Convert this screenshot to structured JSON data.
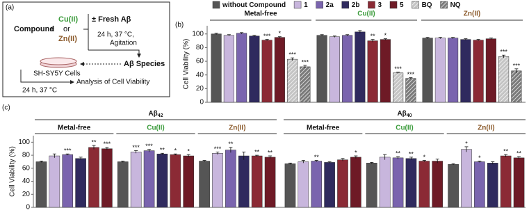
{
  "diagram": {
    "label": "(a)",
    "compound": "Compound",
    "pm": "±",
    "cu": "Cu(II)",
    "or": "or",
    "zn": "Zn(II)",
    "fresh": "± Fresh Aβ",
    "cond1": "24 h, 37 °C,",
    "cond2": "Agitation",
    "species": "Aβ Species",
    "cells": "SH-SY5Y Cells",
    "cond3": "24 h, 37 °C",
    "analysis": "Analysis of Cell Viability"
  },
  "chart_data": [
    {
      "type": "bar",
      "panel_label": "(b)",
      "ylabel": "Cell Viability (%)",
      "ylim": [
        0,
        112
      ],
      "yticks": [
        0,
        20,
        40,
        60,
        80,
        100
      ],
      "series": [
        {
          "name": "without Compound",
          "color": "#555555",
          "hatch": false
        },
        {
          "name": "1",
          "color": "#c8b6dd",
          "hatch": false
        },
        {
          "name": "2a",
          "color": "#7a64ae",
          "hatch": false
        },
        {
          "name": "2b",
          "color": "#2f2a5e",
          "hatch": false
        },
        {
          "name": "3",
          "color": "#8b2a35",
          "hatch": false
        },
        {
          "name": "5",
          "color": "#6e1a26",
          "hatch": false
        },
        {
          "name": "BQ",
          "color": "#c4c4c4",
          "hatch": true
        },
        {
          "name": "NQ",
          "color": "#7a7a7a",
          "hatch": true
        }
      ],
      "groups": [
        {
          "name": "Metal-free",
          "color": "#111111",
          "values": [
            100,
            98,
            101,
            97,
            91,
            95,
            63,
            52
          ],
          "errors": [
            1,
            1,
            1,
            1,
            1,
            1,
            2,
            2
          ],
          "labels": [
            null,
            null,
            null,
            null,
            "***",
            "*",
            "***",
            "***"
          ]
        },
        {
          "name": "Cu(II)",
          "color": "#3a9b3a",
          "values": [
            98,
            96,
            98,
            103,
            90,
            92,
            43,
            35
          ],
          "errors": [
            1,
            1,
            1,
            2,
            2,
            1,
            1,
            1
          ],
          "labels": [
            null,
            null,
            null,
            null,
            "**",
            "*",
            "***",
            "***"
          ]
        },
        {
          "name": "Zn(II)",
          "color": "#8b5a2b",
          "values": [
            94,
            94,
            94,
            92,
            91,
            93,
            67,
            46
          ],
          "errors": [
            1,
            1,
            1,
            1,
            1,
            1,
            2,
            3
          ],
          "labels": [
            null,
            null,
            null,
            null,
            null,
            null,
            "***",
            "***"
          ]
        }
      ]
    },
    {
      "type": "bar",
      "panel_label": "(c)",
      "ylabel": "Cell Viability (%)",
      "ylim": [
        0,
        110
      ],
      "yticks": [
        0,
        20,
        40,
        60,
        80,
        100
      ],
      "supergroups": [
        {
          "name": "Aβ",
          "sub": "42",
          "groups": [
            {
              "name": "Metal-free",
              "color": "#111111",
              "values": [
                70,
                79,
                81,
                75,
                92,
                90
              ],
              "errors": [
                1,
                3,
                1,
                2,
                3,
                2
              ],
              "labels": [
                null,
                null,
                "***",
                null,
                "**",
                "***"
              ]
            },
            {
              "name": "Cu(II)",
              "color": "#3a9b3a",
              "values": [
                70,
                85,
                87,
                82,
                81,
                79
              ],
              "errors": [
                1,
                2,
                2,
                1,
                1,
                2
              ],
              "labels": [
                null,
                "***",
                "***",
                "**",
                "*",
                "*"
              ]
            },
            {
              "name": "Zn(II)",
              "color": "#8b5a2b",
              "values": [
                71,
                83,
                88,
                79,
                79,
                77
              ],
              "errors": [
                1,
                2,
                4,
                6,
                1,
                2
              ],
              "labels": [
                null,
                "***",
                "**",
                null,
                "**",
                "**"
              ]
            }
          ]
        },
        {
          "name": "Aβ",
          "sub": "40",
          "groups": [
            {
              "name": "Metal-free",
              "color": "#111111",
              "values": [
                67,
                70,
                71,
                69,
                73,
                77
              ],
              "errors": [
                1,
                2,
                1,
                1,
                2,
                2
              ],
              "labels": [
                null,
                null,
                "**",
                null,
                null,
                "*"
              ]
            },
            {
              "name": "Cu(II)",
              "color": "#3a9b3a",
              "values": [
                68,
                77,
                76,
                75,
                71,
                71
              ],
              "errors": [
                1,
                4,
                2,
                2,
                1,
                3
              ],
              "labels": [
                null,
                null,
                "**",
                "**",
                "*",
                null
              ]
            },
            {
              "name": "Zn(II)",
              "color": "#8b5a2b",
              "values": [
                66,
                89,
                70,
                68,
                79,
                76
              ],
              "errors": [
                1,
                4,
                1,
                2,
                2,
                2
              ],
              "labels": [
                null,
                "*",
                "*",
                null,
                "**",
                "**"
              ]
            }
          ]
        }
      ]
    }
  ]
}
